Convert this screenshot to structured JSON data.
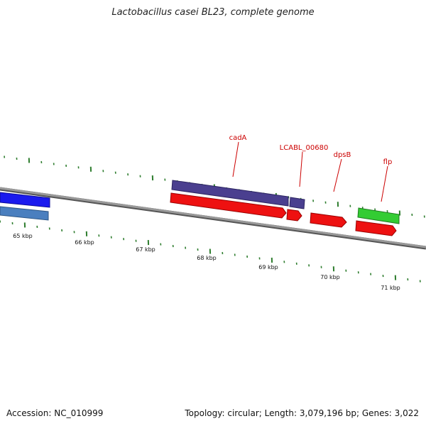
{
  "title": "Lactobacillus casei BL23, complete genome",
  "footer": {
    "accession": "Accession: NC_010999",
    "stats": "Topology: circular; Length: 3,079,196 bp; Genes: 3,022"
  },
  "kbp_labels": [
    "65 kbp",
    "66 kbp",
    "67 kbp",
    "68 kbp",
    "69 kbp",
    "70 kbp",
    "71 kbp"
  ],
  "gene_labels": [
    "cadA",
    "LCABL_00680",
    "dpsB",
    "flp"
  ],
  "colors": {
    "backbone": "#888888",
    "tick": "#2e7d2e",
    "label": "#cc0000",
    "blue": "#1a1aee",
    "steelblue": "#4a7fbf",
    "purple": "#4a3f8f",
    "red": "#ee1111",
    "green": "#33cc33"
  }
}
